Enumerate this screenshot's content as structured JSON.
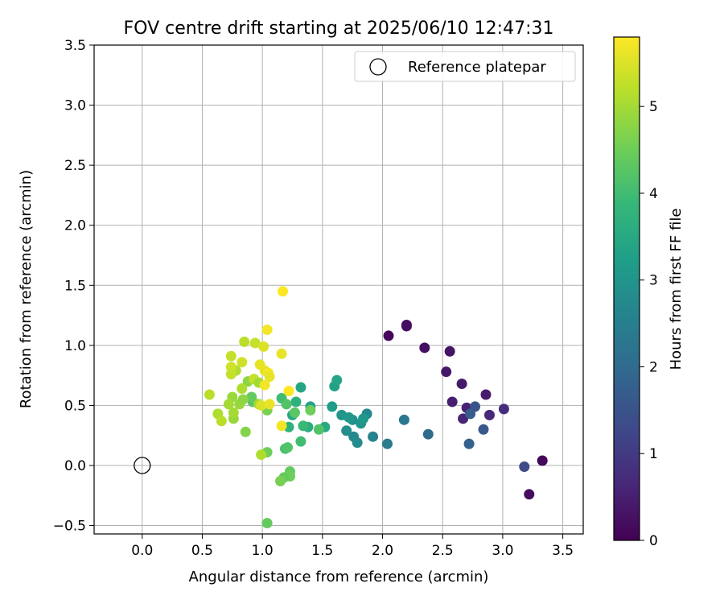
{
  "chart_data": {
    "type": "scatter",
    "title": "FOV centre drift starting at 2025/06/10 12:47:31",
    "xlabel": "Angular distance from reference (arcmin)",
    "ylabel": "Rotation from reference (arcmin)",
    "xlim": [
      -0.4,
      3.67
    ],
    "ylim": [
      -0.57,
      3.5
    ],
    "xticks": [
      "0.0",
      "0.5",
      "1.0",
      "1.5",
      "2.0",
      "2.5",
      "3.0",
      "3.5"
    ],
    "xtick_values": [
      0.0,
      0.5,
      1.0,
      1.5,
      2.0,
      2.5,
      3.0,
      3.5
    ],
    "yticks": [
      "−0.5",
      "0.0",
      "0.5",
      "1.0",
      "1.5",
      "2.0",
      "2.5",
      "3.0",
      "3.5"
    ],
    "ytick_values": [
      -0.5,
      0.0,
      0.5,
      1.0,
      1.5,
      2.0,
      2.5,
      3.0,
      3.5
    ],
    "grid": true,
    "legend": {
      "position": "top-right",
      "entries": [
        {
          "label": "Reference platepar",
          "marker": "open-circle"
        }
      ]
    },
    "reference_point": {
      "x": 0.0,
      "y": 0.0
    },
    "colorbar": {
      "label": "Hours from first FF file",
      "range": [
        0,
        5.8
      ],
      "ticks": [
        "0",
        "1",
        "2",
        "3",
        "4",
        "5"
      ],
      "tick_values": [
        0,
        1,
        2,
        3,
        4,
        5
      ],
      "colormap": "viridis"
    },
    "series": [
      {
        "values": [
          {
            "x": 2.05,
            "y": 1.08,
            "c": 0.1
          },
          {
            "x": 2.2,
            "y": 1.17,
            "c": 0.15
          },
          {
            "x": 2.2,
            "y": 1.16,
            "c": 0.2
          },
          {
            "x": 2.35,
            "y": 0.98,
            "c": 0.25
          },
          {
            "x": 2.56,
            "y": 0.95,
            "c": 0.3
          },
          {
            "x": 2.53,
            "y": 0.78,
            "c": 0.35
          },
          {
            "x": 2.66,
            "y": 0.68,
            "c": 0.4
          },
          {
            "x": 2.86,
            "y": 0.59,
            "c": 0.45
          },
          {
            "x": 2.58,
            "y": 0.53,
            "c": 0.5
          },
          {
            "x": 2.7,
            "y": 0.48,
            "c": 0.55
          },
          {
            "x": 2.67,
            "y": 0.39,
            "c": 0.6
          },
          {
            "x": 2.89,
            "y": 0.42,
            "c": 0.65
          },
          {
            "x": 3.33,
            "y": 0.04,
            "c": 0.1
          },
          {
            "x": 3.22,
            "y": -0.24,
            "c": 0.2
          },
          {
            "x": 3.01,
            "y": 0.47,
            "c": 0.75
          },
          {
            "x": 3.18,
            "y": -0.01,
            "c": 1.3
          },
          {
            "x": 2.77,
            "y": 0.49,
            "c": 1.5
          },
          {
            "x": 2.73,
            "y": 0.43,
            "c": 1.7
          },
          {
            "x": 2.84,
            "y": 0.3,
            "c": 1.6
          },
          {
            "x": 2.72,
            "y": 0.18,
            "c": 1.8
          },
          {
            "x": 2.38,
            "y": 0.26,
            "c": 2.0
          },
          {
            "x": 2.18,
            "y": 0.38,
            "c": 2.3
          },
          {
            "x": 2.04,
            "y": 0.18,
            "c": 2.4
          },
          {
            "x": 1.92,
            "y": 0.24,
            "c": 2.6
          },
          {
            "x": 1.87,
            "y": 0.43,
            "c": 2.7
          },
          {
            "x": 1.76,
            "y": 0.24,
            "c": 2.75
          },
          {
            "x": 1.79,
            "y": 0.19,
            "c": 2.8
          },
          {
            "x": 1.7,
            "y": 0.29,
            "c": 2.85
          },
          {
            "x": 1.75,
            "y": 0.38,
            "c": 2.9
          },
          {
            "x": 1.82,
            "y": 0.35,
            "c": 3.0
          },
          {
            "x": 1.84,
            "y": 0.39,
            "c": 3.1
          },
          {
            "x": 1.66,
            "y": 0.42,
            "c": 3.0
          },
          {
            "x": 1.72,
            "y": 0.4,
            "c": 3.1
          },
          {
            "x": 1.58,
            "y": 0.49,
            "c": 3.2
          },
          {
            "x": 1.6,
            "y": 0.66,
            "c": 3.3
          },
          {
            "x": 1.62,
            "y": 0.71,
            "c": 3.4
          },
          {
            "x": 1.52,
            "y": 0.32,
            "c": 3.5
          },
          {
            "x": 1.4,
            "y": 0.49,
            "c": 3.3
          },
          {
            "x": 1.38,
            "y": 0.32,
            "c": 3.6
          },
          {
            "x": 1.32,
            "y": 0.65,
            "c": 3.4
          },
          {
            "x": 1.28,
            "y": 0.53,
            "c": 3.7
          },
          {
            "x": 1.25,
            "y": 0.42,
            "c": 3.5
          },
          {
            "x": 1.22,
            "y": 0.32,
            "c": 3.7
          },
          {
            "x": 1.34,
            "y": 0.33,
            "c": 3.9
          },
          {
            "x": 1.32,
            "y": 0.2,
            "c": 4.0
          },
          {
            "x": 1.19,
            "y": 0.14,
            "c": 4.1
          },
          {
            "x": 1.21,
            "y": 0.15,
            "c": 4.2
          },
          {
            "x": 1.16,
            "y": 0.56,
            "c": 4.0
          },
          {
            "x": 1.2,
            "y": 0.51,
            "c": 4.2
          },
          {
            "x": 1.27,
            "y": 0.44,
            "c": 4.3
          },
          {
            "x": 1.4,
            "y": 0.46,
            "c": 4.5
          },
          {
            "x": 1.47,
            "y": 0.3,
            "c": 4.2
          },
          {
            "x": 1.23,
            "y": -0.05,
            "c": 4.4
          },
          {
            "x": 1.23,
            "y": -0.09,
            "c": 4.5
          },
          {
            "x": 1.18,
            "y": -0.1,
            "c": 4.4
          },
          {
            "x": 1.15,
            "y": -0.13,
            "c": 4.6
          },
          {
            "x": 1.04,
            "y": -0.48,
            "c": 4.4
          },
          {
            "x": 1.04,
            "y": 0.11,
            "c": 4.5
          },
          {
            "x": 0.92,
            "y": 0.53,
            "c": 4.3
          },
          {
            "x": 0.91,
            "y": 0.57,
            "c": 4.4
          },
          {
            "x": 1.04,
            "y": 0.46,
            "c": 4.6
          },
          {
            "x": 0.86,
            "y": 0.28,
            "c": 4.7
          },
          {
            "x": 0.88,
            "y": 0.7,
            "c": 4.8
          },
          {
            "x": 0.81,
            "y": 0.51,
            "c": 4.9
          },
          {
            "x": 0.84,
            "y": 0.55,
            "c": 4.8
          },
          {
            "x": 0.97,
            "y": 0.51,
            "c": 5.0
          },
          {
            "x": 0.76,
            "y": 0.39,
            "c": 4.9
          },
          {
            "x": 0.76,
            "y": 0.44,
            "c": 5.0
          },
          {
            "x": 0.75,
            "y": 0.57,
            "c": 4.9
          },
          {
            "x": 0.72,
            "y": 0.51,
            "c": 5.0
          },
          {
            "x": 0.78,
            "y": 0.79,
            "c": 5.1
          },
          {
            "x": 0.63,
            "y": 0.43,
            "c": 5.1
          },
          {
            "x": 0.66,
            "y": 0.37,
            "c": 5.2
          },
          {
            "x": 0.56,
            "y": 0.59,
            "c": 5.2
          },
          {
            "x": 0.83,
            "y": 0.64,
            "c": 5.1
          },
          {
            "x": 0.93,
            "y": 0.72,
            "c": 5.3
          },
          {
            "x": 0.85,
            "y": 1.03,
            "c": 5.2
          },
          {
            "x": 0.94,
            "y": 1.02,
            "c": 5.3
          },
          {
            "x": 0.83,
            "y": 0.86,
            "c": 5.4
          },
          {
            "x": 0.74,
            "y": 0.91,
            "c": 5.3
          },
          {
            "x": 0.74,
            "y": 0.82,
            "c": 5.4
          },
          {
            "x": 0.74,
            "y": 0.76,
            "c": 5.3
          },
          {
            "x": 0.97,
            "y": 0.69,
            "c": 5.0
          },
          {
            "x": 0.99,
            "y": 0.09,
            "c": 5.1
          },
          {
            "x": 0.98,
            "y": 0.84,
            "c": 5.6
          },
          {
            "x": 1.02,
            "y": 0.79,
            "c": 5.6
          },
          {
            "x": 1.01,
            "y": 0.99,
            "c": 5.5
          },
          {
            "x": 1.04,
            "y": 1.13,
            "c": 5.7
          },
          {
            "x": 1.16,
            "y": 0.93,
            "c": 5.6
          },
          {
            "x": 1.05,
            "y": 0.77,
            "c": 5.7
          },
          {
            "x": 1.06,
            "y": 0.74,
            "c": 5.6
          },
          {
            "x": 1.02,
            "y": 0.67,
            "c": 5.7
          },
          {
            "x": 0.99,
            "y": 0.5,
            "c": 5.5
          },
          {
            "x": 1.06,
            "y": 0.51,
            "c": 5.6
          },
          {
            "x": 1.16,
            "y": 0.33,
            "c": 5.7
          },
          {
            "x": 1.22,
            "y": 0.62,
            "c": 5.8
          },
          {
            "x": 1.17,
            "y": 1.45,
            "c": 5.8
          }
        ]
      }
    ]
  }
}
